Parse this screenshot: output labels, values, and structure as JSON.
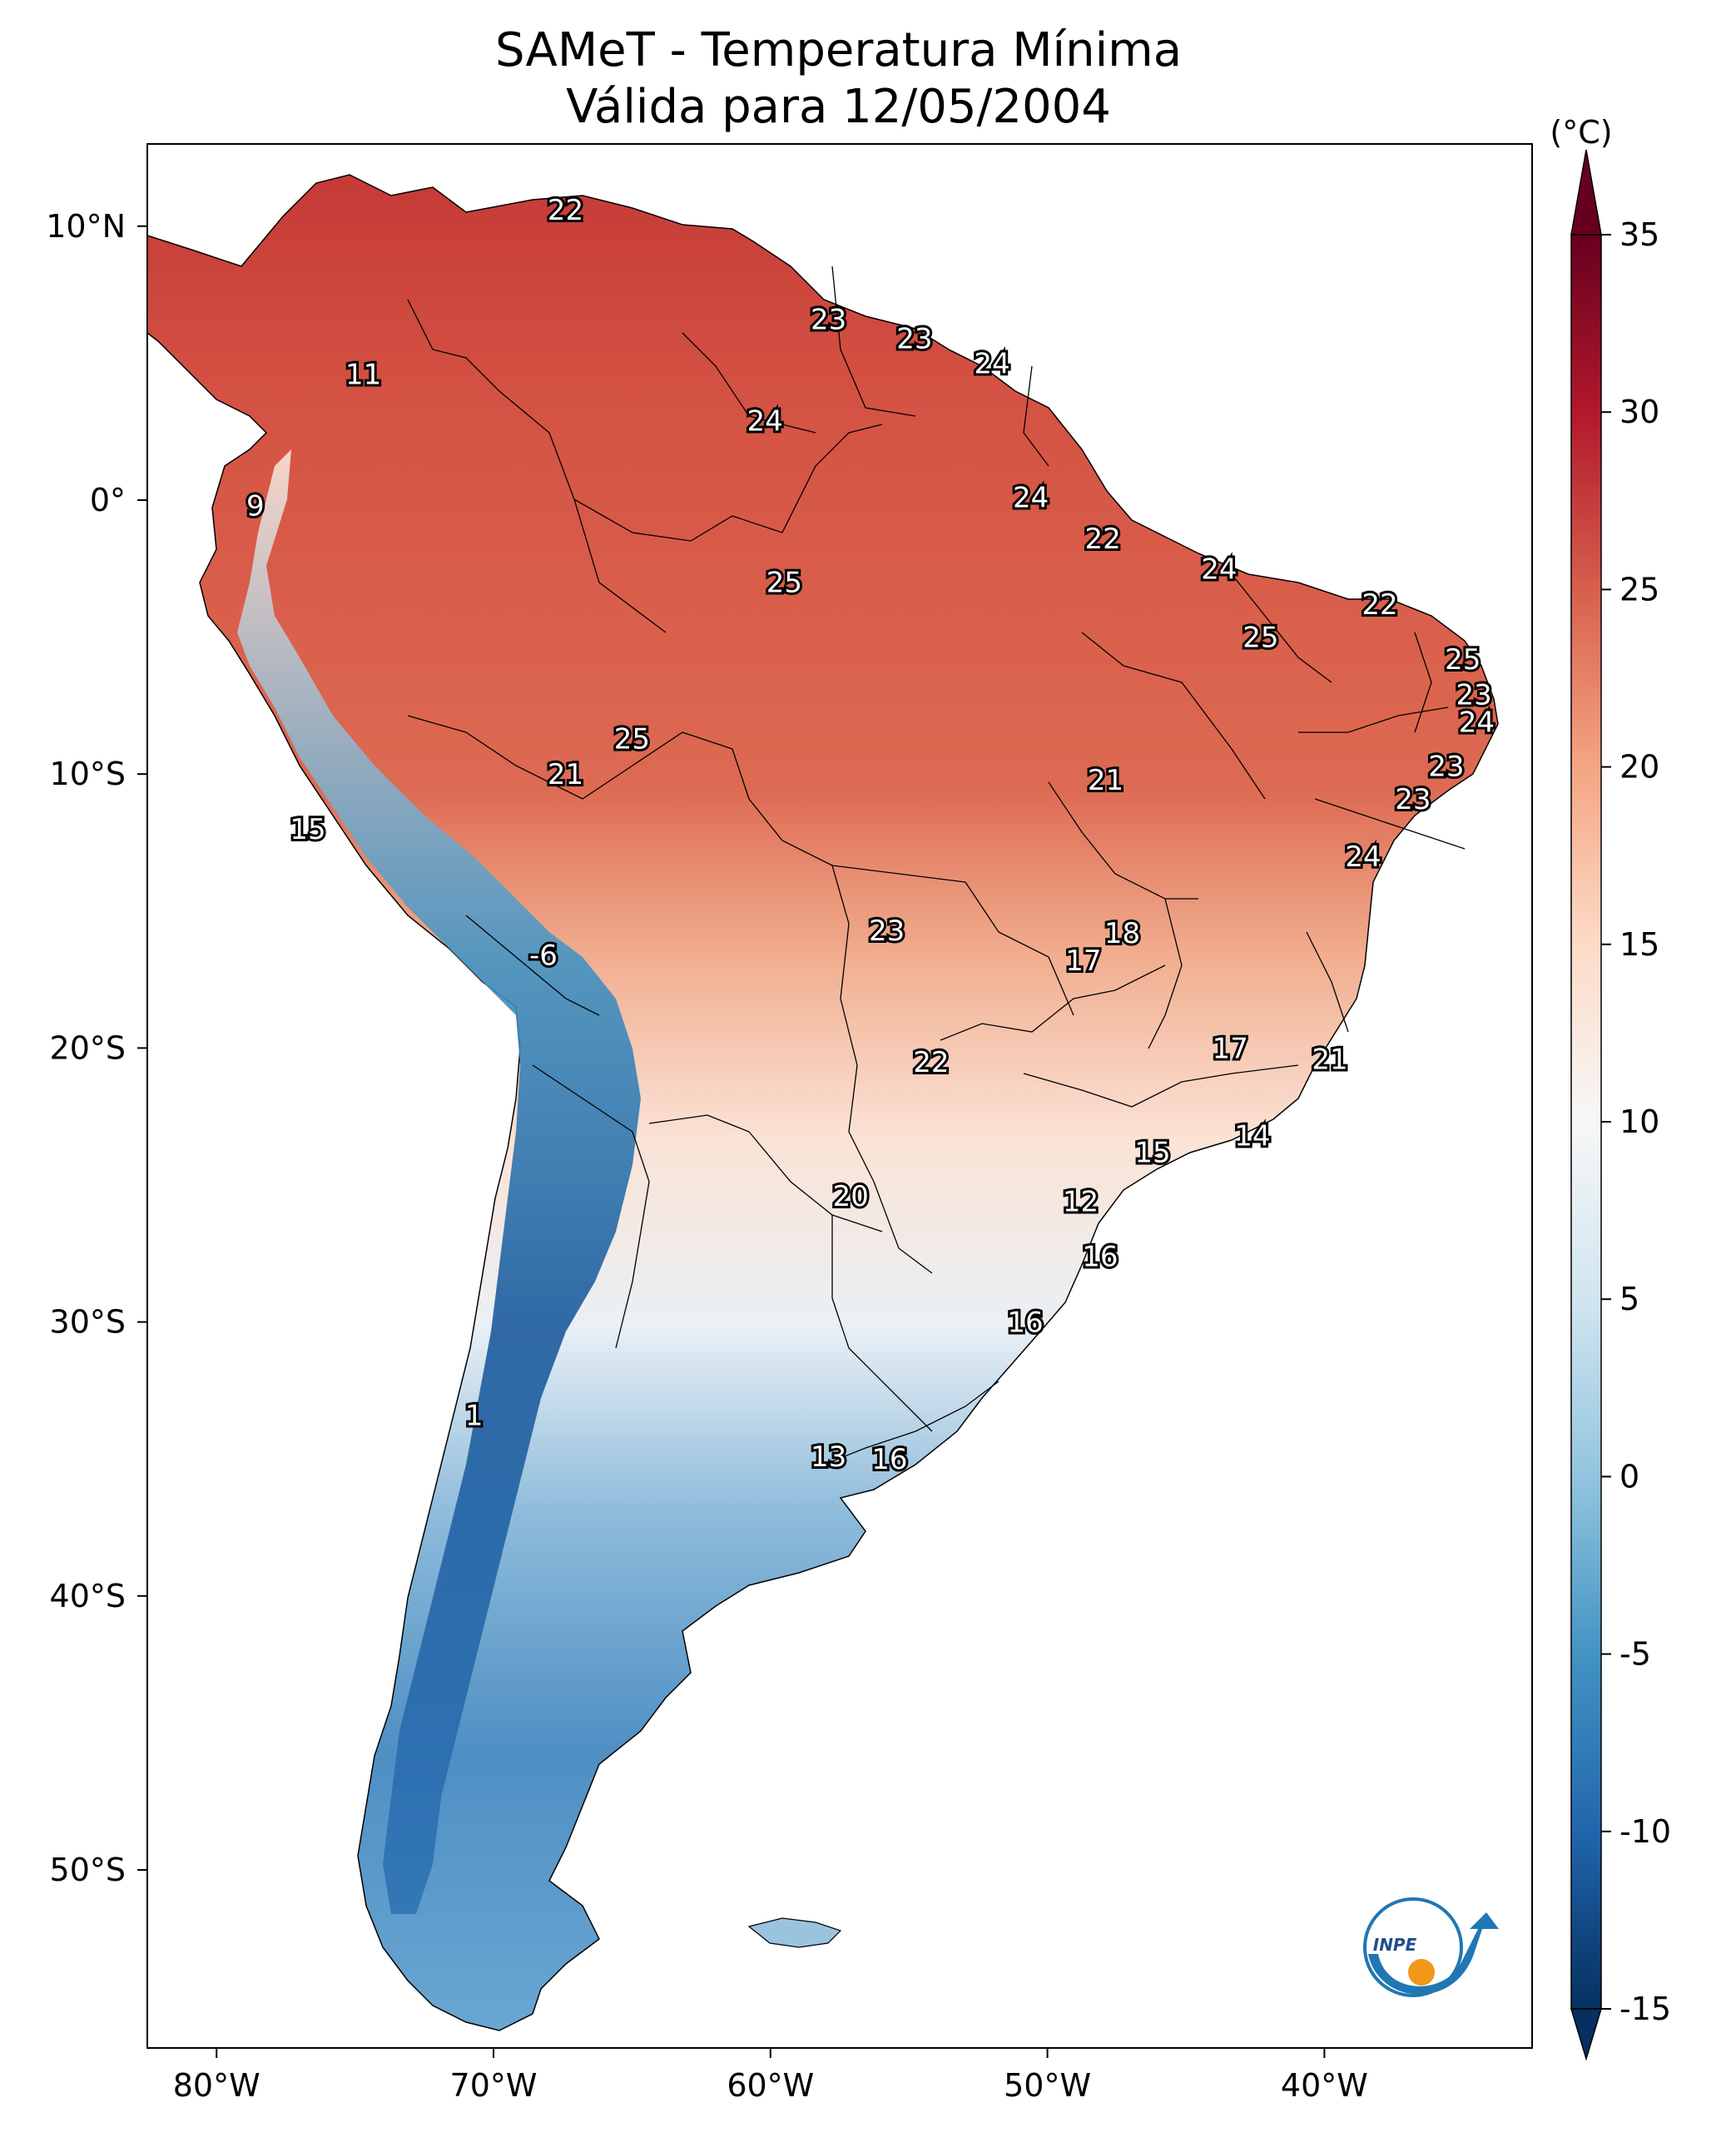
{
  "title": {
    "line1": "SAMeT - Temperatura Mínima",
    "line2": "Válida para 12/05/2004"
  },
  "map": {
    "lon_range": [
      -82.5,
      -32.5
    ],
    "lat_range": [
      -56.5,
      13
    ],
    "lon_ticks": [
      "80°W",
      "70°W",
      "60°W",
      "50°W",
      "40°W"
    ],
    "lat_ticks": [
      "10°N",
      "0°",
      "10°S",
      "20°S",
      "30°S",
      "40°S",
      "50°S"
    ]
  },
  "colorbar": {
    "unit": "(°C)",
    "range": [
      -15,
      35
    ],
    "ticks": [
      "35",
      "30",
      "25",
      "20",
      "15",
      "10",
      "5",
      "0",
      "-5",
      "-10",
      "-15"
    ],
    "colormap": [
      "#053061",
      "#2166ac",
      "#4393c3",
      "#92c5de",
      "#d1e5f0",
      "#f7f7f7",
      "#fddbc7",
      "#f4a582",
      "#d6604d",
      "#b2182b",
      "#67001f"
    ]
  },
  "point_labels": [
    {
      "text": "22",
      "lon": -67.4,
      "lat": 10.6
    },
    {
      "text": "11",
      "lon": -74.7,
      "lat": 4.6
    },
    {
      "text": "23",
      "lon": -57.9,
      "lat": 6.6
    },
    {
      "text": "23",
      "lon": -54.8,
      "lat": 5.9
    },
    {
      "text": "24",
      "lon": -52.0,
      "lat": 5.0
    },
    {
      "text": "24",
      "lon": -60.2,
      "lat": 2.9
    },
    {
      "text": "9",
      "lon": -78.6,
      "lat": -0.2
    },
    {
      "text": "24",
      "lon": -50.6,
      "lat": 0.1
    },
    {
      "text": "22",
      "lon": -48.0,
      "lat": -1.4
    },
    {
      "text": "24",
      "lon": -43.8,
      "lat": -2.5
    },
    {
      "text": "22",
      "lon": -38.0,
      "lat": -3.8
    },
    {
      "text": "25",
      "lon": -59.5,
      "lat": -3.0
    },
    {
      "text": "25",
      "lon": -42.3,
      "lat": -5.0
    },
    {
      "text": "25",
      "lon": -35.0,
      "lat": -5.8
    },
    {
      "text": "23",
      "lon": -34.6,
      "lat": -7.1
    },
    {
      "text": "24",
      "lon": -34.5,
      "lat": -8.1
    },
    {
      "text": "23",
      "lon": -35.6,
      "lat": -9.7
    },
    {
      "text": "25",
      "lon": -65.0,
      "lat": -8.7
    },
    {
      "text": "21",
      "lon": -67.4,
      "lat": -10.0
    },
    {
      "text": "21",
      "lon": -47.9,
      "lat": -10.2
    },
    {
      "text": "23",
      "lon": -36.8,
      "lat": -10.9
    },
    {
      "text": "15",
      "lon": -76.7,
      "lat": -12.0
    },
    {
      "text": "24",
      "lon": -38.6,
      "lat": -13.0
    },
    {
      "text": "18",
      "lon": -47.3,
      "lat": -15.8
    },
    {
      "text": "23",
      "lon": -55.8,
      "lat": -15.7
    },
    {
      "text": "17",
      "lon": -48.7,
      "lat": -16.8
    },
    {
      "text": "-6",
      "lon": -68.2,
      "lat": -16.6
    },
    {
      "text": "17",
      "lon": -43.4,
      "lat": -20.0
    },
    {
      "text": "21",
      "lon": -39.8,
      "lat": -20.4
    },
    {
      "text": "22",
      "lon": -54.2,
      "lat": -20.5
    },
    {
      "text": "14",
      "lon": -42.6,
      "lat": -23.2
    },
    {
      "text": "15",
      "lon": -46.2,
      "lat": -23.8
    },
    {
      "text": "12",
      "lon": -48.8,
      "lat": -25.6
    },
    {
      "text": "20",
      "lon": -57.1,
      "lat": -25.4
    },
    {
      "text": "16",
      "lon": -48.1,
      "lat": -27.6
    },
    {
      "text": "16",
      "lon": -50.8,
      "lat": -30.0
    },
    {
      "text": "1",
      "lon": -70.7,
      "lat": -33.4
    },
    {
      "text": "13",
      "lon": -57.9,
      "lat": -34.9
    },
    {
      "text": "16",
      "lon": -55.7,
      "lat": -35.0
    }
  ],
  "logo": {
    "text": "INPE"
  }
}
